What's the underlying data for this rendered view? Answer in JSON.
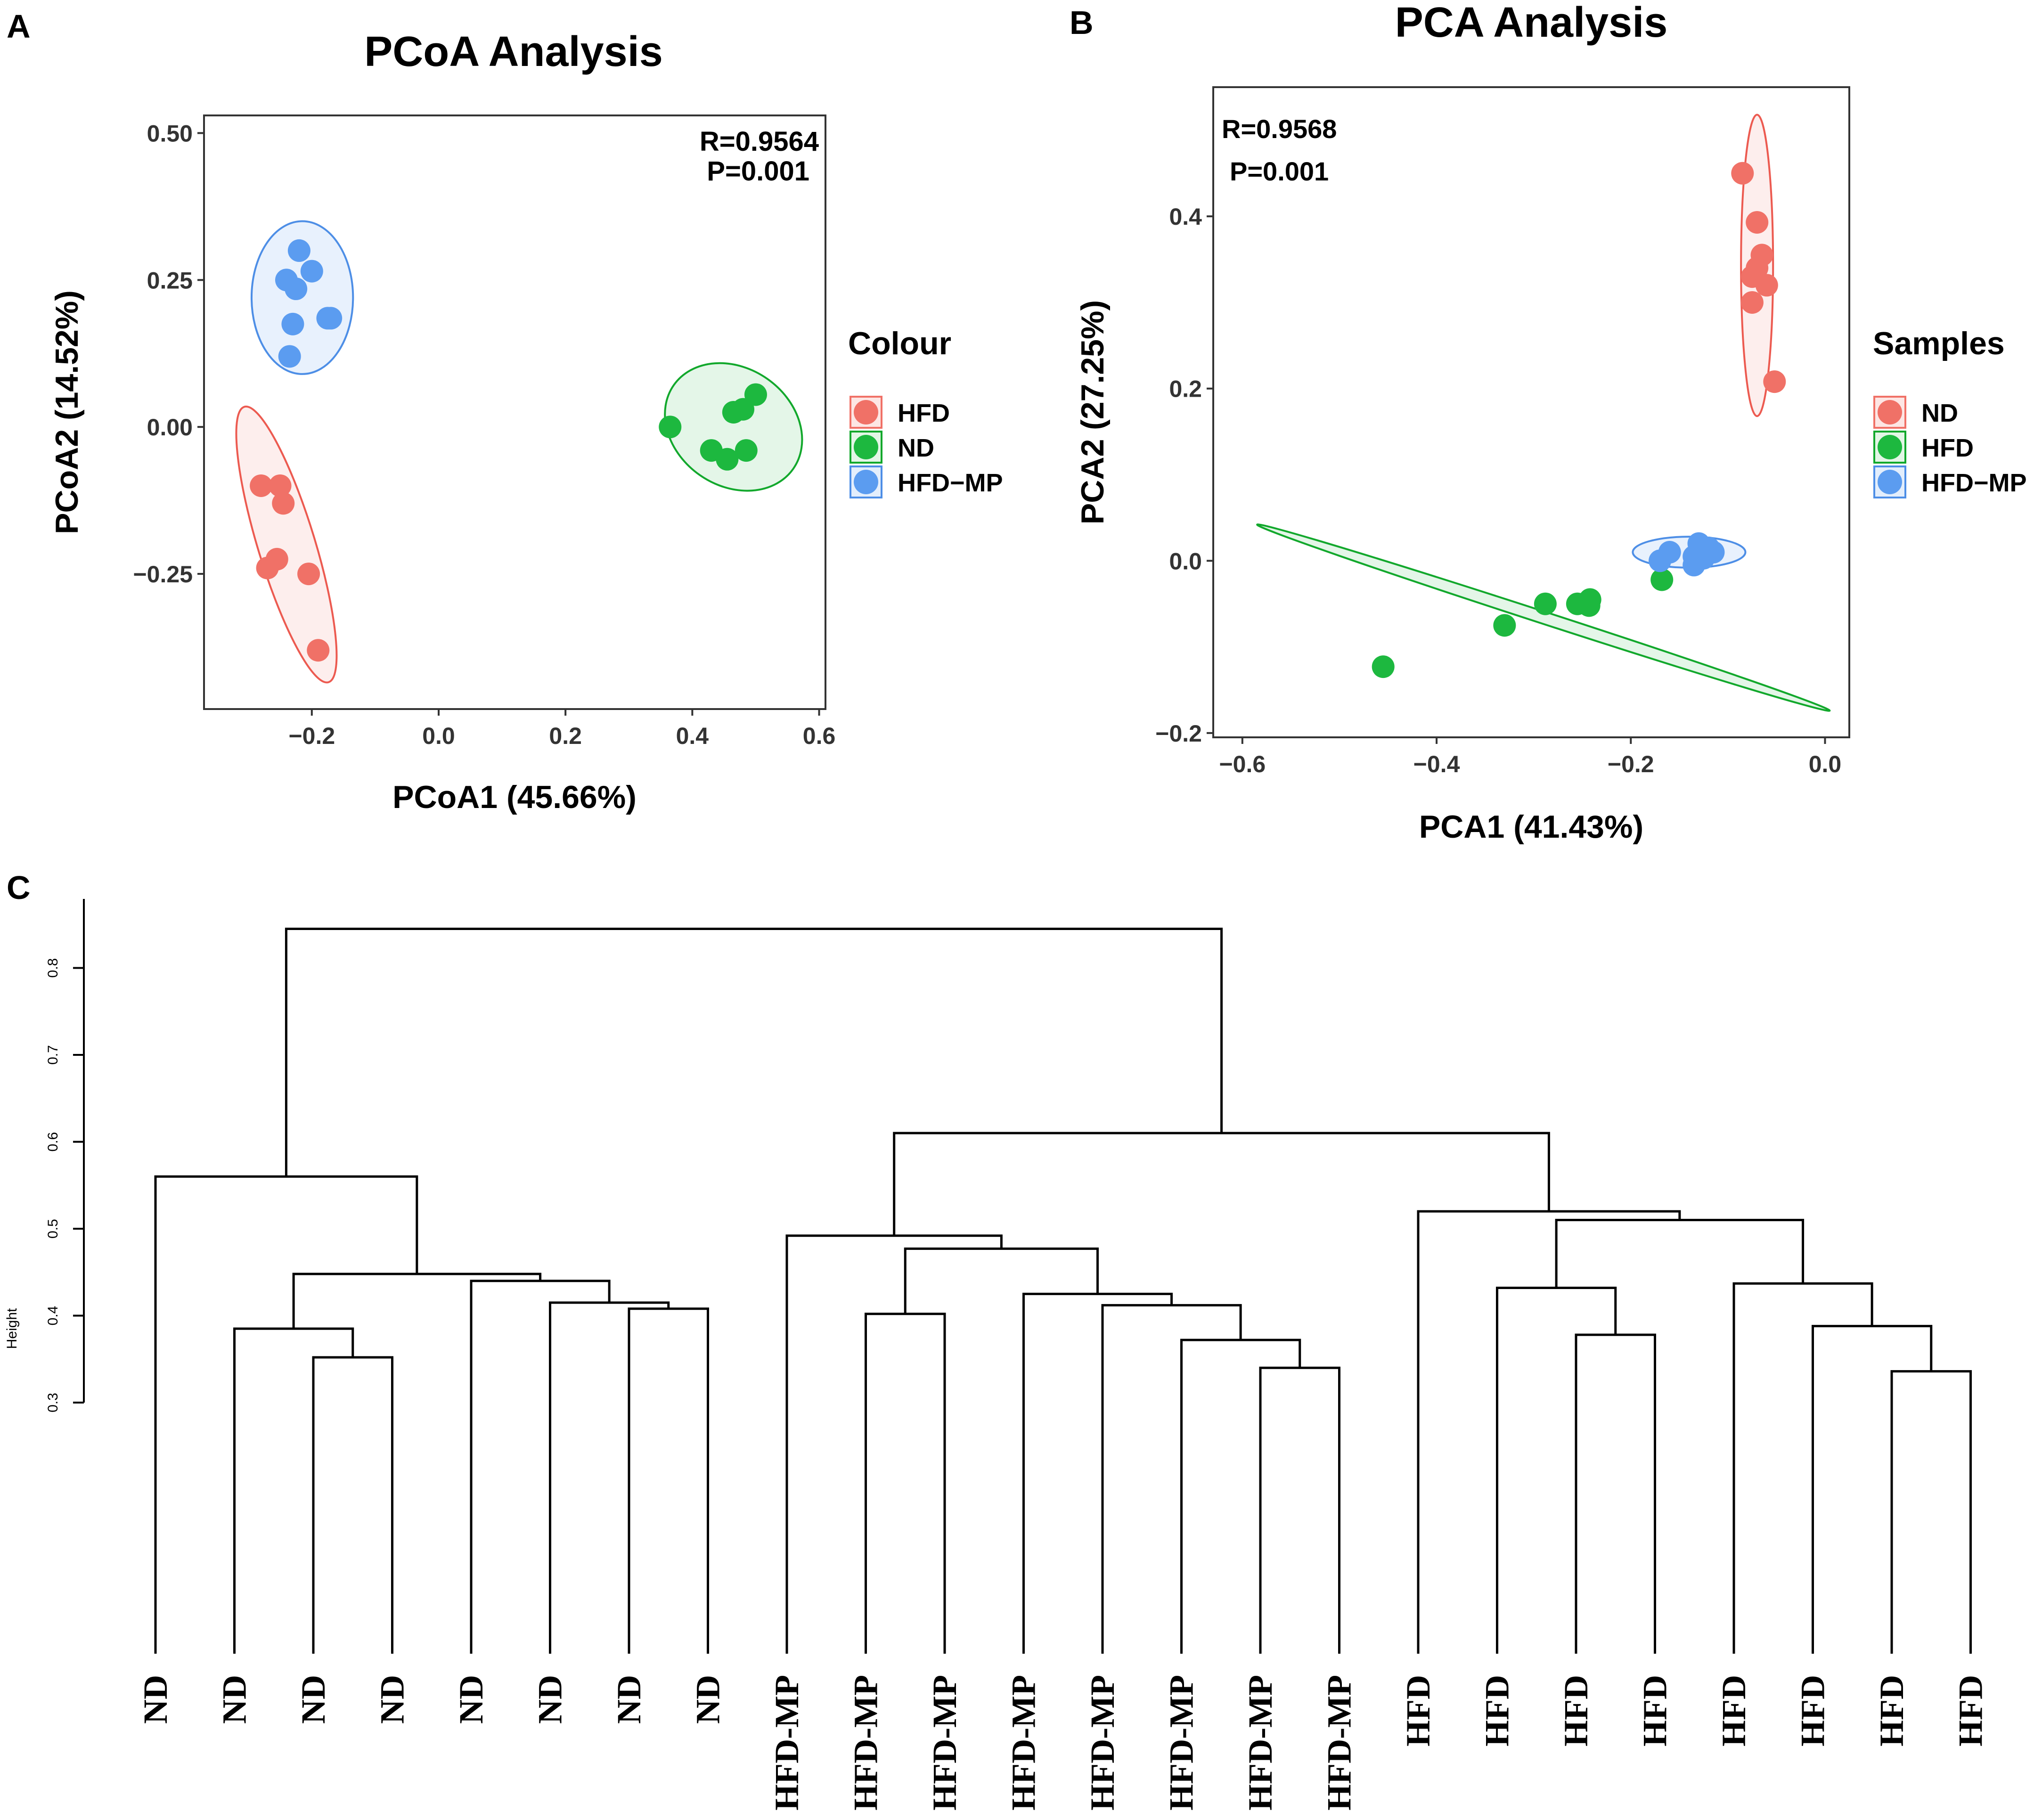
{
  "panels": {
    "a": "A",
    "b": "B",
    "c": "C"
  },
  "colors": {
    "hfd_red": "#f07167",
    "nd_green": "#1db83f",
    "hfdmp_blue": "#5b9cf0",
    "red_line": "#ec5a50",
    "green_line": "#12a82c",
    "blue_line": "#4d8ee6"
  },
  "chart_data": [
    {
      "type": "scatter",
      "id": "pcoa",
      "title": "PCoA Analysis",
      "xlabel": "PCoA1 (45.66%)",
      "ylabel": "PCoA2 (14.52%)",
      "xlim": [
        -0.37,
        0.61
      ],
      "ylim": [
        -0.48,
        0.53
      ],
      "xticks": [
        -0.2,
        0.0,
        0.2,
        0.4,
        0.6
      ],
      "xtick_labels": [
        "−0.2",
        "0.0",
        "0.2",
        "0.4",
        "0.6"
      ],
      "yticks": [
        -0.25,
        0.0,
        0.25,
        0.5
      ],
      "ytick_labels": [
        "−0.25",
        "0.00",
        "0.25",
        "0.50"
      ],
      "stats": [
        "R=0.9564",
        "P=0.001"
      ],
      "legend_title": "Colour",
      "legend": [
        "HFD",
        "ND",
        "HFD−MP"
      ],
      "series": [
        {
          "name": "HFD",
          "color": "#f07167",
          "points": [
            [
              -0.28,
              -0.1
            ],
            [
              -0.25,
              -0.1
            ],
            [
              -0.245,
              -0.13
            ],
            [
              -0.255,
              -0.225
            ],
            [
              -0.27,
              -0.24
            ],
            [
              -0.205,
              -0.25
            ],
            [
              -0.19,
              -0.38
            ]
          ],
          "ellipse": {
            "cx": -0.24,
            "cy": -0.2,
            "rx": 0.045,
            "ry": 0.245,
            "rot": -17
          }
        },
        {
          "name": "ND",
          "color": "#1db83f",
          "points": [
            [
              0.365,
              0.0
            ],
            [
              0.43,
              -0.04
            ],
            [
              0.455,
              -0.055
            ],
            [
              0.465,
              0.025
            ],
            [
              0.48,
              0.03
            ],
            [
              0.5,
              0.055
            ],
            [
              0.485,
              -0.04
            ]
          ],
          "ellipse": {
            "cx": 0.465,
            "cy": 0.0,
            "rx": 0.115,
            "ry": 0.1,
            "rot": 35
          }
        },
        {
          "name": "HFD−MP",
          "color": "#5b9cf0",
          "points": [
            [
              -0.22,
              0.3
            ],
            [
              -0.2,
              0.265
            ],
            [
              -0.24,
              0.25
            ],
            [
              -0.225,
              0.235
            ],
            [
              -0.23,
              0.175
            ],
            [
              -0.175,
              0.185
            ],
            [
              -0.17,
              0.185
            ],
            [
              -0.235,
              0.12
            ]
          ],
          "ellipse": {
            "cx": -0.215,
            "cy": 0.22,
            "rx": 0.08,
            "ry": 0.13,
            "rot": 0
          }
        }
      ]
    },
    {
      "type": "scatter",
      "id": "pca",
      "title": "PCA Analysis",
      "xlabel": "PCA1 (41.43%)",
      "ylabel": "PCA2 (27.25%)",
      "xlim": [
        -0.63,
        0.025
      ],
      "ylim": [
        -0.205,
        0.55
      ],
      "xticks": [
        -0.6,
        -0.4,
        -0.2,
        0.0
      ],
      "xtick_labels": [
        "−0.6",
        "−0.4",
        "−0.2",
        "0.0"
      ],
      "yticks": [
        -0.2,
        0.0,
        0.2,
        0.4
      ],
      "ytick_labels": [
        "−0.2",
        "0.0",
        "0.2",
        "0.4"
      ],
      "stats": [
        "R=0.9568",
        "P=0.001"
      ],
      "legend_title": "Samples",
      "legend": [
        "ND",
        "HFD",
        "HFD−MP"
      ],
      "series": [
        {
          "name": "ND",
          "color": "#f07167",
          "points": [
            [
              -0.085,
              0.45
            ],
            [
              -0.07,
              0.393
            ],
            [
              -0.065,
              0.355
            ],
            [
              -0.07,
              0.34
            ],
            [
              -0.075,
              0.33
            ],
            [
              -0.06,
              0.32
            ],
            [
              -0.075,
              0.3
            ],
            [
              -0.052,
              0.208
            ]
          ],
          "ellipse": {
            "cx": -0.07,
            "cy": 0.343,
            "rx": 0.0165,
            "ry": 0.175,
            "rot": 0
          }
        },
        {
          "name": "HFD",
          "color": "#1db83f",
          "points": [
            [
              -0.455,
              -0.123
            ],
            [
              -0.33,
              -0.075
            ],
            [
              -0.288,
              -0.05
            ],
            [
              -0.255,
              -0.05
            ],
            [
              -0.243,
              -0.052
            ],
            [
              -0.242,
              -0.045
            ],
            [
              -0.168,
              -0.022
            ]
          ],
          "ellipse": {
            "cx": -0.29,
            "cy": -0.066,
            "rx": 0.31,
            "ry": 0.007,
            "rot": 18
          }
        },
        {
          "name": "HFD−MP",
          "color": "#5b9cf0",
          "points": [
            [
              -0.17,
              0.0
            ],
            [
              -0.16,
              0.01
            ],
            [
              -0.135,
              0.005
            ],
            [
              -0.13,
              0.02
            ],
            [
              -0.12,
              0.015
            ],
            [
              -0.125,
              0.003
            ],
            [
              -0.115,
              0.01
            ],
            [
              -0.135,
              -0.005
            ]
          ],
          "ellipse": {
            "cx": -0.14,
            "cy": 0.01,
            "rx": 0.058,
            "ry": 0.018,
            "rot": 0
          }
        }
      ]
    },
    {
      "type": "dendrogram",
      "id": "cluster",
      "ylabel": "Height",
      "ylim": [
        0.3,
        0.9
      ],
      "yticks": [
        0.3,
        0.4,
        0.5,
        0.6,
        0.7,
        0.8
      ],
      "ytick_labels": [
        "0.3",
        "0.4",
        "0.5",
        "0.6",
        "0.7",
        "0.8"
      ],
      "leaves": [
        "ND",
        "ND",
        "ND",
        "ND",
        "ND",
        "ND",
        "ND",
        "ND",
        "HFD-MP",
        "HFD-MP",
        "HFD-MP",
        "HFD-MP",
        "HFD-MP",
        "HFD-MP",
        "HFD-MP",
        "HFD-MP",
        "HFD",
        "HFD",
        "HFD",
        "HFD",
        "HFD",
        "HFD",
        "HFD",
        "HFD"
      ],
      "merges": [
        [
          2,
          3,
          0.352
        ],
        [
          1,
          -1,
          0.385
        ],
        [
          6,
          7,
          0.408
        ],
        [
          5,
          -3,
          0.415
        ],
        [
          4,
          -4,
          0.44
        ],
        [
          -2,
          -5,
          0.448
        ],
        [
          0,
          -6,
          0.56
        ],
        [
          14,
          15,
          0.34
        ],
        [
          13,
          -8,
          0.372
        ],
        [
          12,
          -9,
          0.412
        ],
        [
          11,
          -10,
          0.425
        ],
        [
          9,
          10,
          0.402
        ],
        [
          -12,
          -11,
          0.477
        ],
        [
          8,
          -13,
          0.492
        ],
        [
          18,
          19,
          0.378
        ],
        [
          17,
          -15,
          0.432
        ],
        [
          22,
          23,
          0.336
        ],
        [
          21,
          -17,
          0.388
        ],
        [
          20,
          -18,
          0.437
        ],
        [
          -16,
          -19,
          0.51
        ],
        [
          16,
          -20,
          0.52
        ],
        [
          -14,
          -21,
          0.61
        ],
        [
          -7,
          -22,
          0.845
        ]
      ]
    }
  ]
}
